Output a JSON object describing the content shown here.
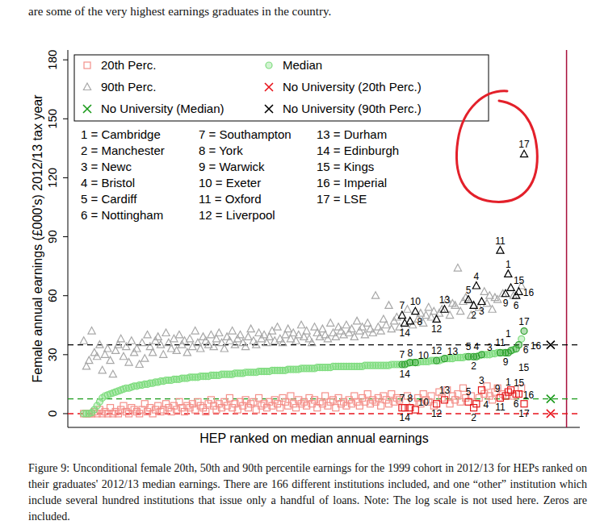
{
  "chart_data": {
    "type": "scatter",
    "x_label": "HEP ranked on median annual earnings",
    "y_label": "Female annual earnings (£000's) 2012/13 tax year",
    "xlim": [
      -5,
      188
    ],
    "ylim": [
      -7,
      185
    ],
    "yticks": [
      0,
      30,
      60,
      90,
      120,
      150,
      180
    ],
    "grid": false,
    "legend": "top-left",
    "tick_labels": "y",
    "x": [
      1,
      2,
      3,
      4,
      5,
      6,
      7,
      8,
      9,
      10,
      11,
      12,
      13,
      14,
      15,
      16,
      17,
      18,
      19,
      20,
      21,
      22,
      23,
      24,
      25,
      26,
      27,
      28,
      29,
      30,
      31,
      32,
      33,
      34,
      35,
      36,
      37,
      38,
      39,
      40,
      41,
      42,
      43,
      44,
      45,
      46,
      47,
      48,
      49,
      50,
      51,
      52,
      53,
      54,
      55,
      56,
      57,
      58,
      59,
      60,
      61,
      62,
      63,
      64,
      65,
      66,
      67,
      68,
      69,
      70,
      71,
      72,
      73,
      74,
      75,
      76,
      77,
      78,
      79,
      80,
      81,
      82,
      83,
      84,
      85,
      86,
      87,
      88,
      89,
      90,
      91,
      92,
      93,
      94,
      95,
      96,
      97,
      98,
      99,
      100,
      101,
      102,
      103,
      104,
      105,
      106,
      107,
      108,
      109,
      110,
      111,
      112,
      113,
      114,
      115,
      116,
      117,
      118,
      119,
      120,
      121,
      122,
      123,
      124,
      125,
      126,
      127,
      128,
      129,
      130,
      131,
      132,
      133,
      134,
      135,
      136,
      137,
      138,
      139,
      140,
      141,
      142,
      143,
      144,
      145,
      146,
      147,
      148,
      149,
      150,
      151,
      152,
      153,
      154,
      155,
      156,
      157,
      158,
      159,
      160,
      161,
      162,
      163,
      164,
      165,
      166,
      167
    ],
    "point_labels": [
      null,
      null,
      null,
      null,
      null,
      null,
      null,
      null,
      null,
      null,
      null,
      null,
      null,
      null,
      null,
      null,
      null,
      null,
      null,
      null,
      null,
      null,
      null,
      null,
      null,
      null,
      null,
      null,
      null,
      null,
      null,
      null,
      null,
      null,
      null,
      null,
      null,
      null,
      null,
      null,
      null,
      null,
      null,
      null,
      null,
      null,
      null,
      null,
      null,
      null,
      null,
      null,
      null,
      null,
      null,
      null,
      null,
      null,
      null,
      null,
      null,
      null,
      null,
      null,
      null,
      null,
      null,
      null,
      null,
      null,
      null,
      null,
      null,
      null,
      null,
      null,
      null,
      null,
      null,
      null,
      null,
      null,
      null,
      null,
      null,
      null,
      null,
      null,
      null,
      null,
      null,
      null,
      null,
      null,
      null,
      null,
      null,
      null,
      null,
      null,
      null,
      null,
      null,
      null,
      null,
      null,
      null,
      null,
      null,
      null,
      null,
      null,
      null,
      null,
      null,
      null,
      null,
      null,
      null,
      null,
      "7",
      "14",
      null,
      "8",
      null,
      "10",
      null,
      null,
      null,
      null,
      null,
      null,
      null,
      "12",
      null,
      null,
      "13",
      null,
      null,
      null,
      null,
      null,
      null,
      null,
      null,
      "5",
      null,
      "2",
      "4",
      null,
      "3",
      null,
      null,
      null,
      null,
      null,
      null,
      "11",
      null,
      "9",
      "1",
      "15",
      null,
      "6",
      "16",
      null,
      "17"
    ],
    "series": [
      {
        "name": "20th Perc.",
        "color": "#f4908a",
        "marker": "square",
        "values": [
          0,
          0,
          0,
          0,
          1,
          0,
          2,
          0,
          1,
          0,
          3,
          0,
          1,
          0,
          2,
          4,
          1,
          0,
          3,
          2,
          1,
          0,
          2,
          5,
          1,
          3,
          0,
          2,
          4,
          1,
          2,
          5,
          3,
          1,
          4,
          2,
          6,
          3,
          1,
          4,
          3,
          5,
          2,
          6,
          4,
          3,
          1,
          5,
          7,
          4,
          2,
          5,
          3,
          6,
          4,
          8,
          3,
          5,
          2,
          6,
          4,
          7,
          3,
          5,
          6,
          2,
          8,
          4,
          5,
          3,
          6,
          4,
          7,
          5,
          3,
          8,
          6,
          4,
          9,
          5,
          3,
          7,
          5,
          6,
          4,
          8,
          5,
          7,
          3,
          6,
          5,
          9,
          4,
          6,
          7,
          3,
          8,
          5,
          6,
          4,
          7,
          5,
          9,
          6,
          4,
          8,
          6,
          10,
          5,
          7,
          6,
          8,
          4,
          9,
          7,
          5,
          10,
          6,
          8,
          7,
          3,
          3,
          9,
          3,
          6,
          2,
          8,
          5,
          10,
          7,
          6,
          9,
          4,
          5,
          11,
          8,
          7,
          12,
          5,
          9,
          7,
          10,
          6,
          13,
          8,
          6,
          9,
          3,
          5,
          8,
          12,
          10,
          14,
          9,
          7,
          11,
          13,
          8,
          10,
          9,
          11,
          12,
          9,
          10,
          10,
          13,
          5
        ]
      },
      {
        "name": "Median",
        "color": "#7fdc7f",
        "marker": "circle",
        "values": [
          0,
          0,
          0,
          0.5,
          2,
          4,
          6,
          8,
          9,
          9.5,
          10,
          10.5,
          11,
          11.5,
          12,
          12.5,
          13,
          13,
          13.5,
          14,
          14,
          14.5,
          14.5,
          15,
          15,
          15.5,
          15.5,
          16,
          16,
          16.5,
          16.5,
          17,
          17,
          17,
          17.5,
          17.5,
          17.5,
          18,
          18,
          18,
          18.5,
          18.5,
          18.5,
          18.5,
          19,
          19,
          19,
          19,
          19.5,
          19.5,
          19.5,
          19.5,
          20,
          20,
          20,
          20,
          20,
          20.5,
          20.5,
          20.5,
          20.5,
          21,
          21,
          21,
          21,
          21,
          21.5,
          21.5,
          21.5,
          21.5,
          21.5,
          22,
          22,
          22,
          22,
          22,
          22,
          22.5,
          22.5,
          22.5,
          22.5,
          22.5,
          23,
          23,
          23,
          23,
          23,
          23,
          23.5,
          23.5,
          23.5,
          23.5,
          23.5,
          23.5,
          24,
          24,
          24,
          24,
          24,
          24,
          24,
          24,
          24,
          24,
          24,
          24,
          24.5,
          24.5,
          24.5,
          24.5,
          24.5,
          24.5,
          24.5,
          24.5,
          24.5,
          24.5,
          25,
          25,
          25,
          25,
          25,
          25,
          25.5,
          26,
          26,
          26,
          26,
          26.5,
          26.5,
          26.5,
          26.5,
          27,
          27,
          27,
          27,
          27.5,
          28,
          28,
          28,
          28,
          28.5,
          28.5,
          28.5,
          28.5,
          29,
          29,
          29,
          29,
          29,
          29.5,
          30,
          30,
          30,
          30,
          30.5,
          30.5,
          31,
          31,
          31,
          31,
          31,
          32,
          32.5,
          33,
          35,
          38,
          42
        ]
      },
      {
        "name": "90th Perc.",
        "color": "#a8a8a8",
        "marker": "triangle",
        "values": [
          37,
          24,
          27,
          42,
          31,
          29,
          35,
          22,
          30,
          33,
          27,
          20,
          32,
          35,
          38,
          29,
          34,
          26,
          37,
          31,
          33,
          25,
          36,
          28,
          40,
          34,
          31,
          37,
          39,
          35,
          30,
          41,
          36,
          33,
          38,
          32,
          40,
          35,
          37,
          31,
          38,
          34,
          42,
          36,
          33,
          39,
          37,
          35,
          40,
          34,
          38,
          41,
          36,
          33,
          39,
          37,
          42,
          35,
          38,
          40,
          36,
          34,
          39,
          43,
          37,
          35,
          41,
          38,
          40,
          36,
          39,
          42,
          37,
          44,
          38,
          36,
          40,
          43,
          38,
          41,
          37,
          40,
          45,
          39,
          42,
          38,
          36,
          44,
          41,
          39,
          43,
          40,
          38,
          46,
          41,
          39,
          44,
          42,
          40,
          45,
          41,
          43,
          39,
          47,
          42,
          44,
          40,
          46,
          43,
          41,
          60,
          44,
          42,
          48,
          45,
          55,
          43,
          47,
          49,
          44,
          50,
          46,
          53,
          47,
          45,
          52,
          48,
          51,
          46,
          50,
          54,
          49,
          52,
          48,
          51,
          53,
          53,
          58,
          50,
          56,
          55,
          74,
          52,
          57,
          59,
          58,
          50,
          55,
          65,
          54,
          57,
          62,
          56,
          60,
          53,
          59,
          58,
          83,
          61,
          61,
          71,
          64,
          60,
          60,
          62,
          65,
          132
        ]
      },
      {
        "name": "No University (20th Perc.)",
        "color": "#e8141c",
        "marker": "x",
        "line_style": "dashed",
        "x": [
          177
        ],
        "values": [
          0
        ]
      },
      {
        "name": "No University (Median)",
        "color": "#1a9a1a",
        "marker": "x",
        "line_style": "dashed",
        "x": [
          177
        ],
        "values": [
          7.5
        ]
      },
      {
        "name": "No University (90th Perc.)",
        "color": "#000000",
        "marker": "x",
        "line_style": "dashed",
        "x": [
          177
        ],
        "values": [
          35
        ]
      }
    ],
    "vline": {
      "value": 183,
      "color": "#a8103c"
    },
    "key": [
      "1 = Cambridge",
      "2 = Manchester",
      "3 = Newc",
      "4 = Bristol",
      "5 = Cardiff",
      "6 = Nottingham",
      "7 = Southampton",
      "8 = York",
      "9 = Warwick",
      "10 = Exeter",
      "11 = Oxford",
      "12 = Liverpool",
      "13 = Durham",
      "14 = Edinburgh",
      "15 = Kings",
      "16 = Imperial",
      "17 = LSE"
    ]
  },
  "document": {
    "preceding_text": "are some of the very highest earnings graduates in the country.",
    "caption": "Figure 9: Unconditional female 20th, 50th and 90th percentile earnings for the 1999 cohort in 2012/13 for HEPs ranked on their graduates' 2012/13 median earnings. There are 166 different institutions included, and one “other” institution which include several hundred institutions that issue only a handful of loans. Note: The log scale is not used here. Zeros are included."
  }
}
